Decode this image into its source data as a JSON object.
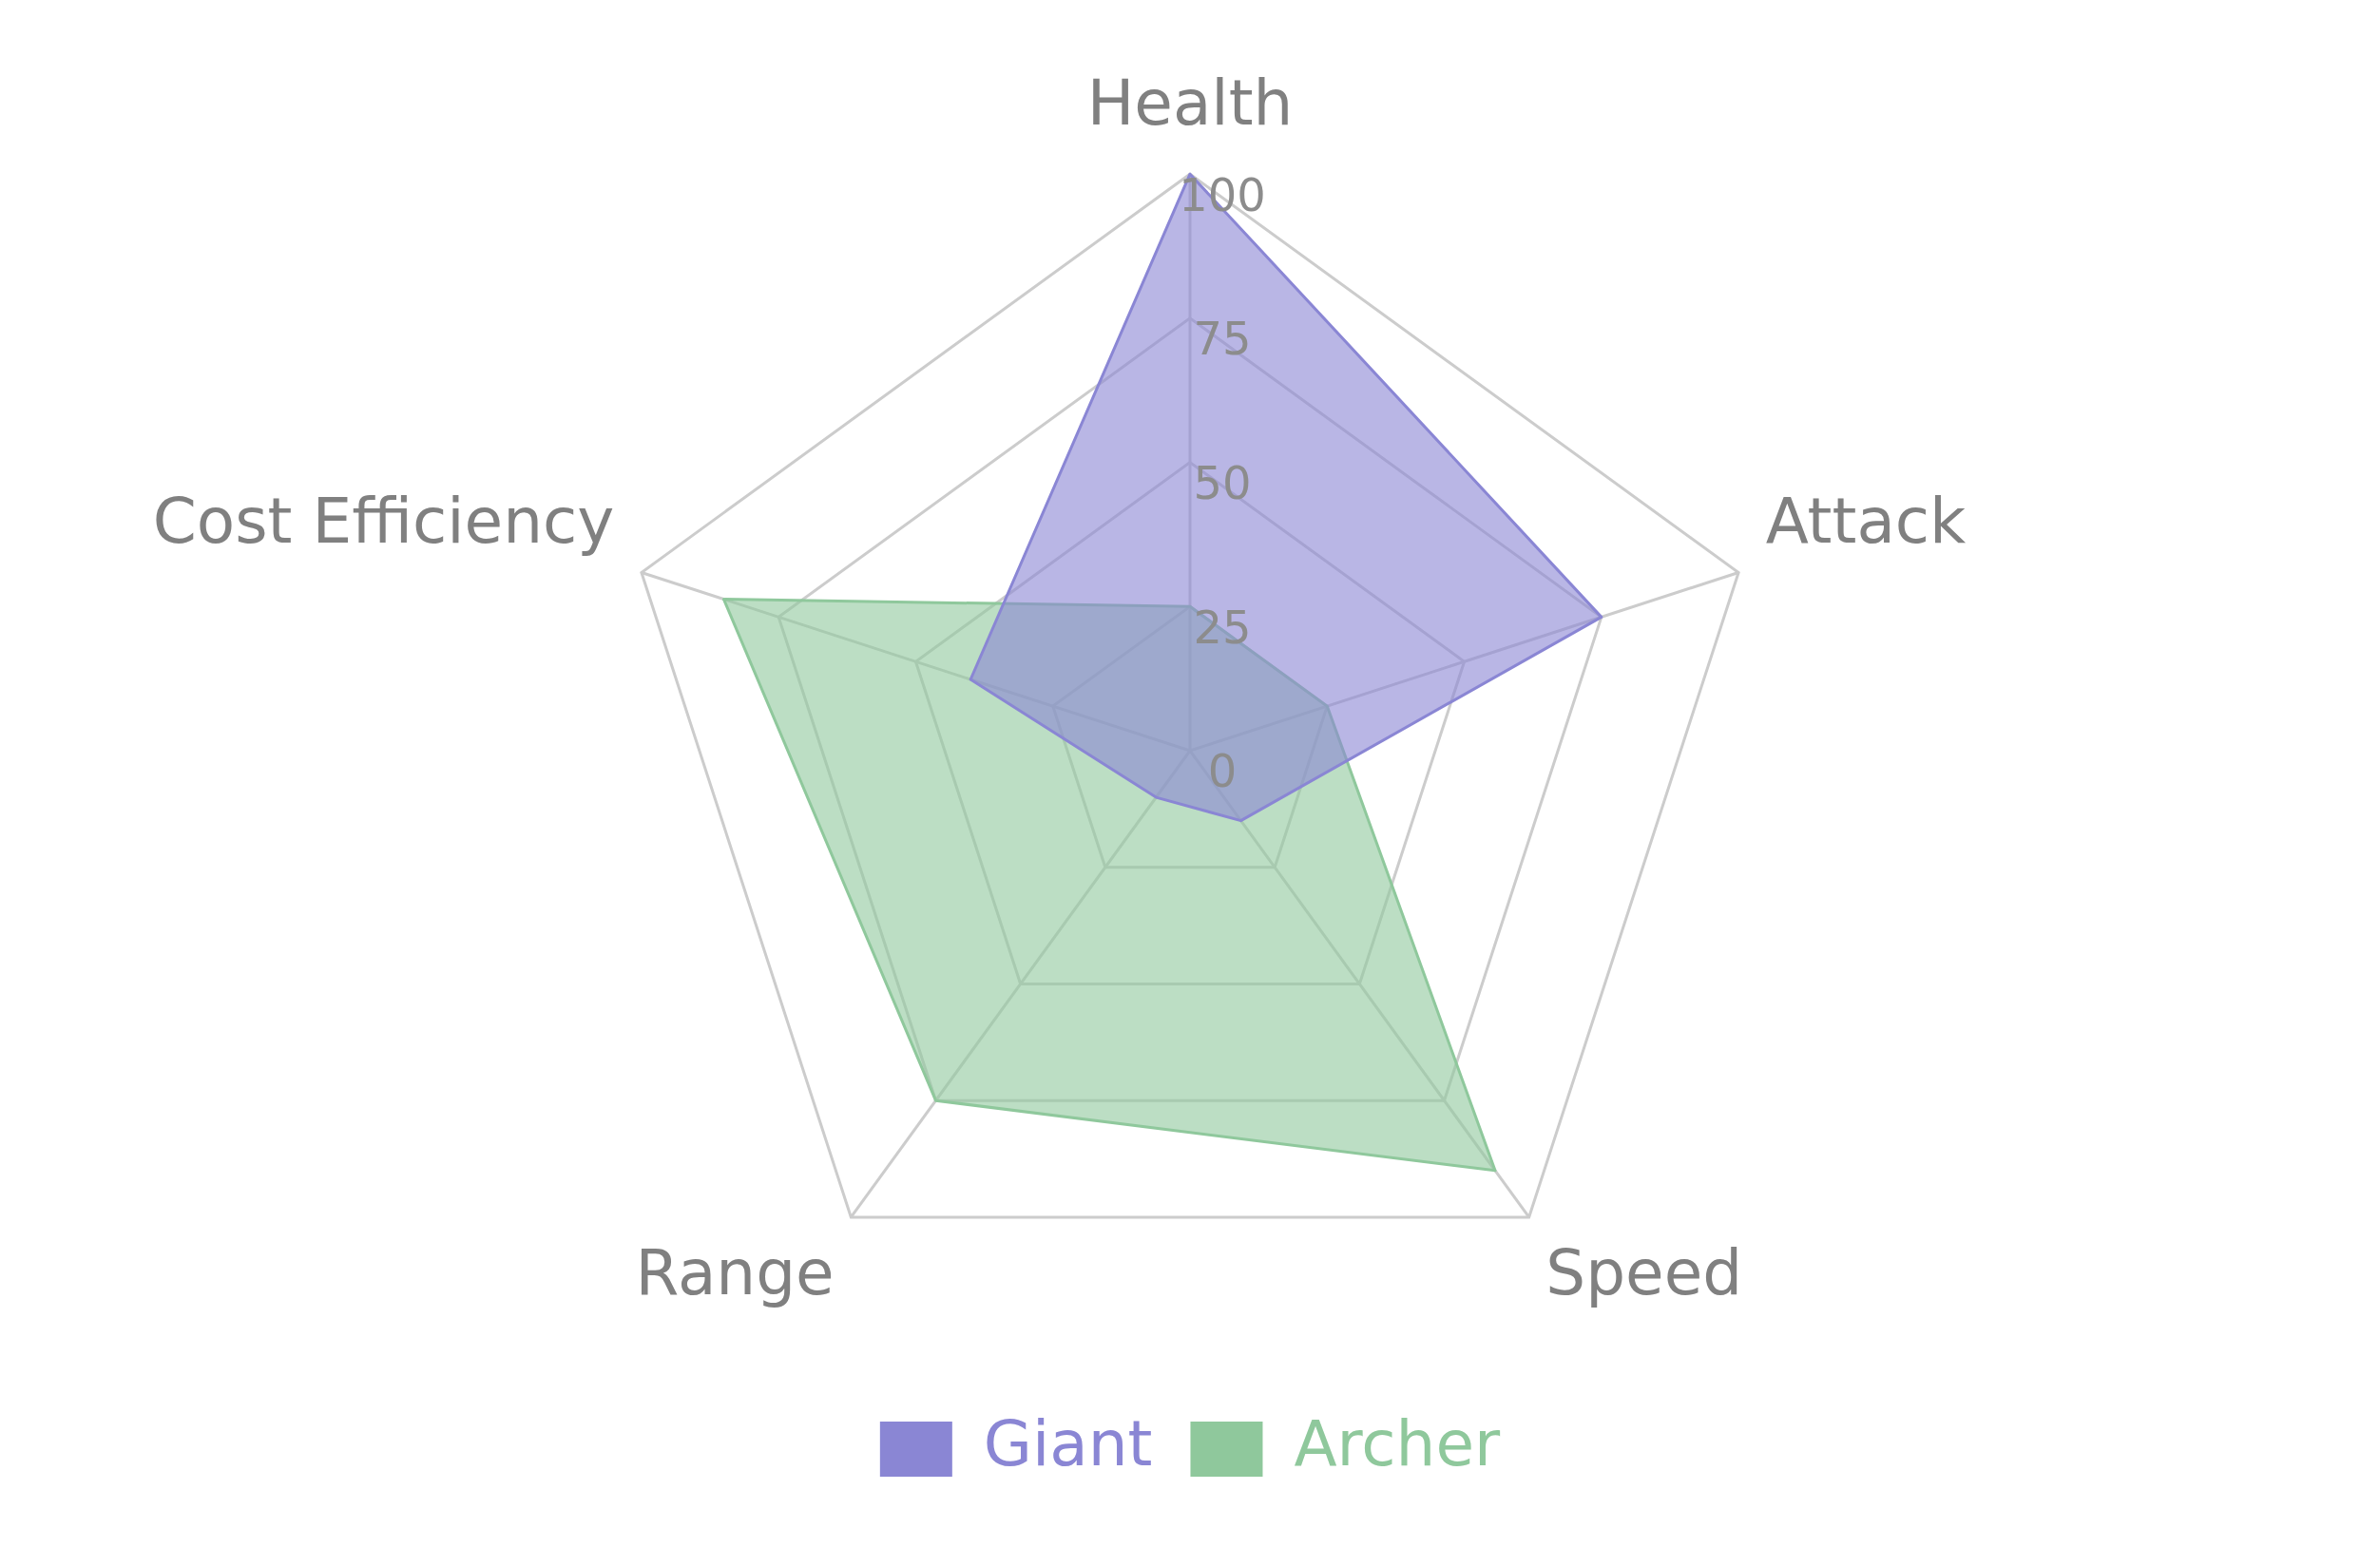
{
  "chart_data": {
    "type": "radar",
    "categories": [
      "Health",
      "Attack",
      "Speed",
      "Range",
      "Cost Efficiency"
    ],
    "series": [
      {
        "name": "Giant",
        "color": "#8a86d4",
        "values": [
          100,
          75,
          15,
          10,
          40
        ]
      },
      {
        "name": "Archer",
        "color": "#8fc89c",
        "values": [
          25,
          25,
          90,
          75,
          85
        ]
      }
    ],
    "ylim": [
      0,
      100
    ],
    "yticks": [
      0,
      25,
      50,
      75,
      100
    ],
    "grid": true,
    "legend": "bottom"
  }
}
